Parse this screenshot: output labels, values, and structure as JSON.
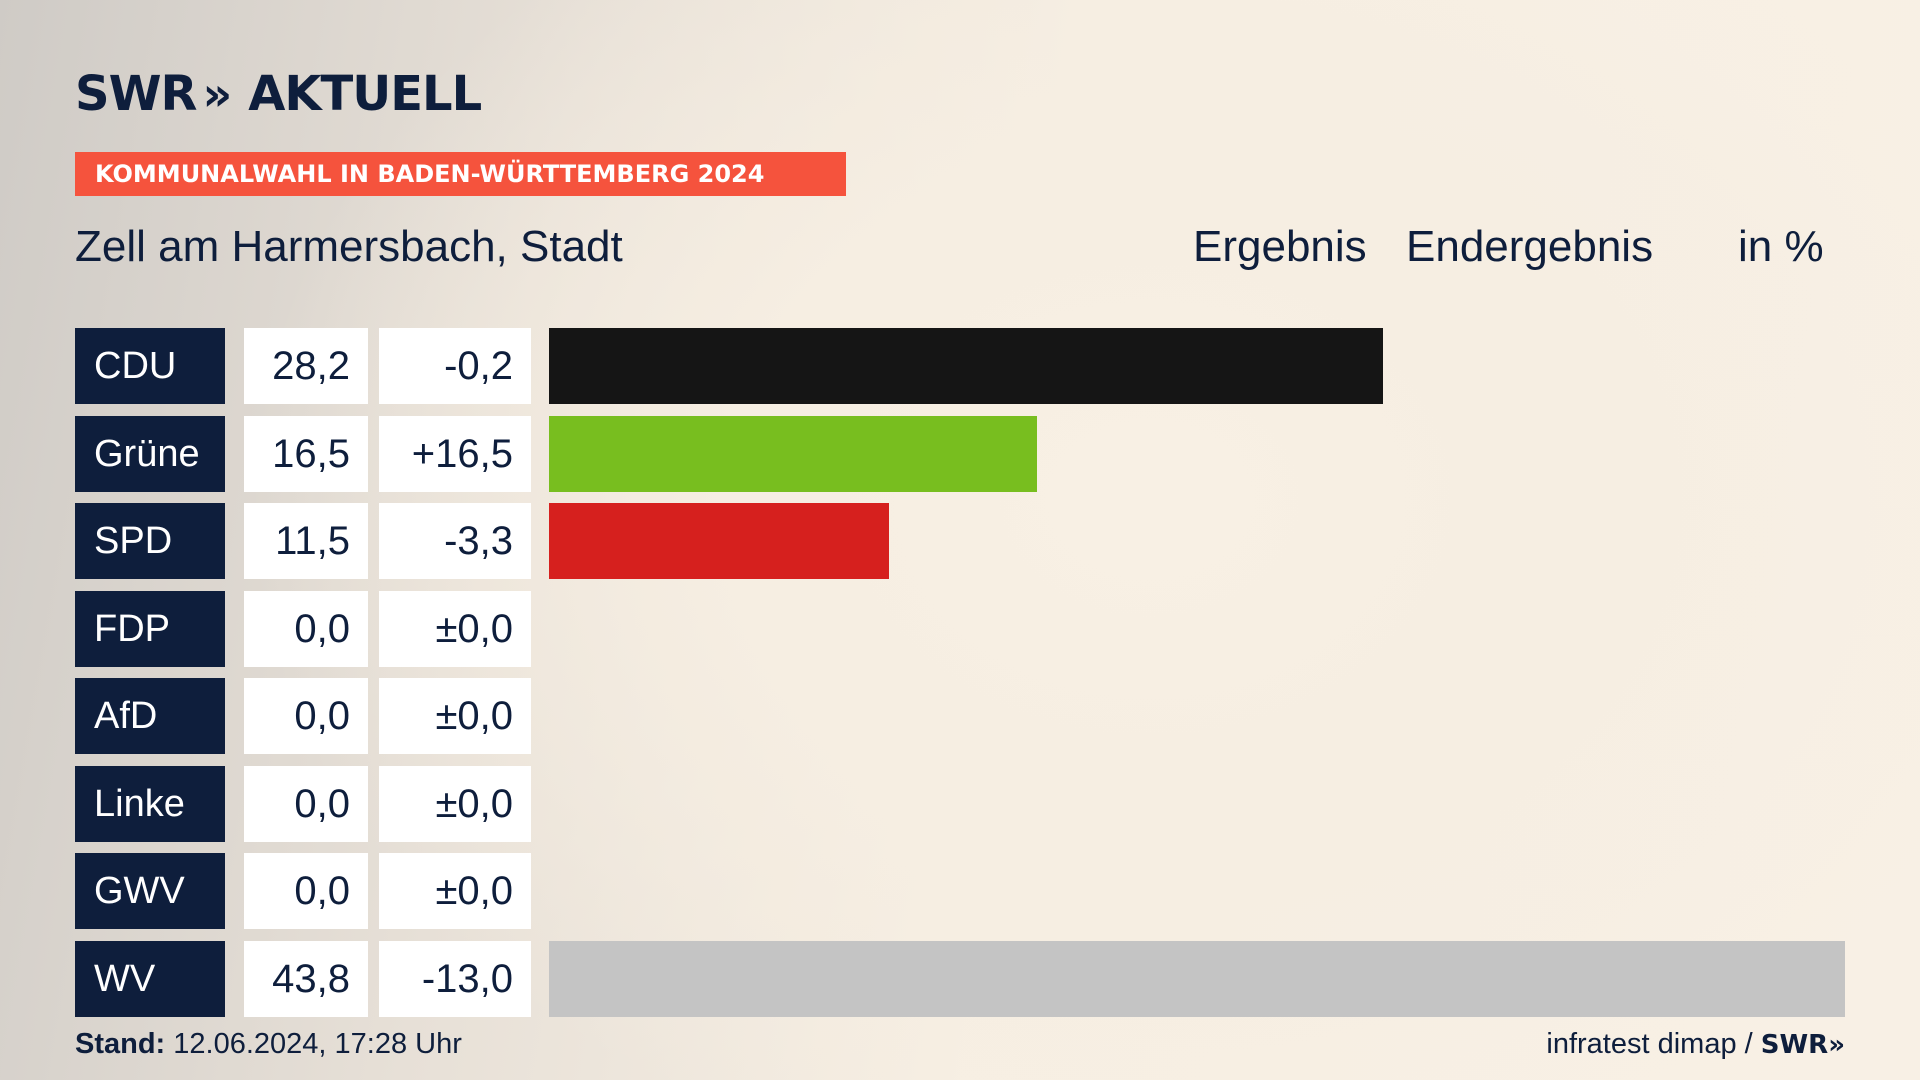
{
  "brand": {
    "logo_left": "SWR",
    "logo_chevrons": "»",
    "logo_right": "AKTUELL"
  },
  "banner": "KOMMUNALWAHL IN BADEN-WÜRTTEMBERG 2024",
  "place": "Zell am Harmersbach, Stadt",
  "headers": {
    "ergebnis": "Ergebnis",
    "endergebnis": "Endergebnis",
    "unit": "in %"
  },
  "colors": {
    "CDU": "#151515",
    "Grüne": "#78be1f",
    "SPD": "#d6201e",
    "FDP": "#ffe000",
    "AfD": "#1aa0e0",
    "Linke": "#b4156c",
    "GWV": "#9a9a9a",
    "WV": "#c4c4c4"
  },
  "chart_data": {
    "type": "bar",
    "orientation": "horizontal",
    "categories": [
      "CDU",
      "Grüne",
      "SPD",
      "FDP",
      "AfD",
      "Linke",
      "GWV",
      "WV"
    ],
    "series": [
      {
        "values": [
          28.2,
          16.5,
          11.5,
          0.0,
          0.0,
          0.0,
          0.0,
          43.8
        ]
      }
    ],
    "labels": [
      "28,2",
      "16,5",
      "11,5",
      "0,0",
      "0,0",
      "0,0",
      "0,0",
      "43,8"
    ],
    "changes": [
      "-0,2",
      "+16,5",
      "-3,3",
      "±0,0",
      "±0,0",
      "±0,0",
      "±0,0",
      "-13,0"
    ],
    "xlim": [
      0,
      43.8
    ]
  },
  "footer": {
    "stand_label": "Stand:",
    "stand_value": "12.06.2024, 17:28 Uhr",
    "source": "infratest dimap /",
    "source_brand": "SWR»"
  }
}
